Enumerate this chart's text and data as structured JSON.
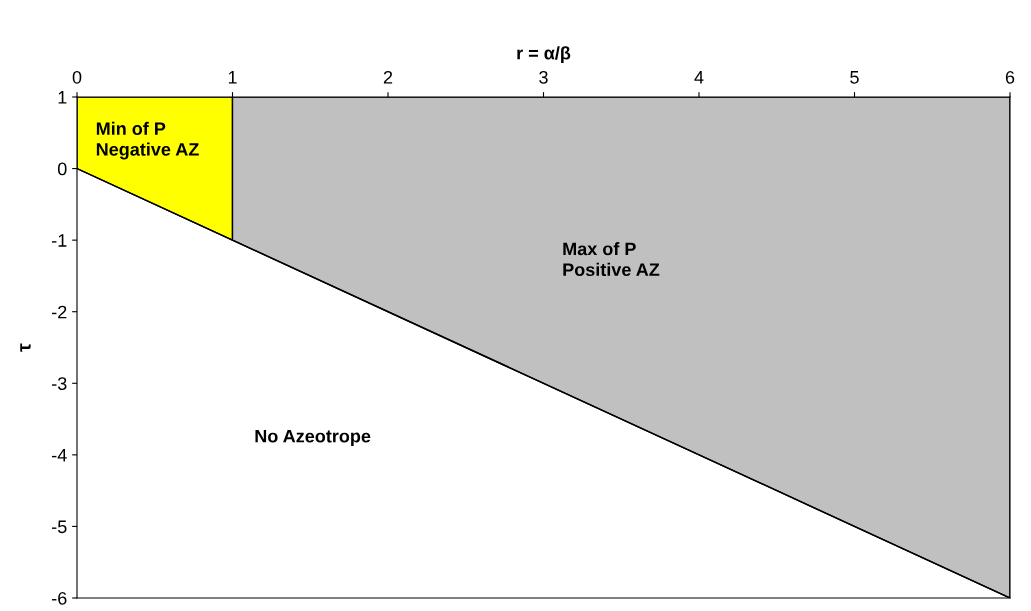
{
  "chart_data": {
    "type": "area",
    "xlabel": "r = α/β",
    "ylabel": "τ",
    "xlim": [
      0,
      6
    ],
    "xticks": [
      0,
      1,
      2,
      3,
      4,
      5,
      6
    ],
    "ylim": [
      -6,
      1
    ],
    "yticks": [
      1,
      0,
      -1,
      -2,
      -3,
      -4,
      -5,
      -6
    ],
    "grid": false,
    "legend": false,
    "series": [
      {
        "color": "#ffff00",
        "x": [
          0,
          1,
          1,
          0
        ],
        "values": [
          1,
          1,
          -1,
          0
        ]
      },
      {
        "color": "#c0c0c0",
        "x": [
          1,
          6,
          6,
          1
        ],
        "values": [
          1,
          1,
          -6,
          -1
        ]
      },
      {
        "type": "line",
        "color": "#000000",
        "x": [
          0,
          6
        ],
        "values": [
          0,
          -6
        ]
      }
    ],
    "annotations": [
      "Min of P\nNegative AZ",
      "Max of P\nPositive AZ",
      "No Azeotrope"
    ]
  }
}
